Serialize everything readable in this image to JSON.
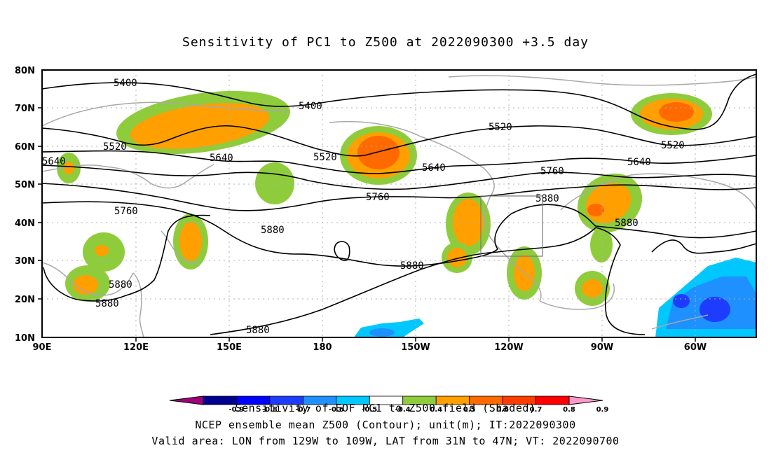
{
  "title": "Sensitivity of PC1 to Z500 at 2022090300 +3.5 day",
  "axes": {
    "lon_labels": [
      "90E",
      "120E",
      "150E",
      "180",
      "150W",
      "120W",
      "90W",
      "60W"
    ],
    "lat_labels": [
      "80N",
      "70N",
      "60N",
      "50N",
      "40N",
      "30N",
      "20N",
      "10N"
    ]
  },
  "contour_labels": [
    {
      "text": "5400"
    },
    {
      "text": "5400"
    },
    {
      "text": "5520"
    },
    {
      "text": "5520"
    },
    {
      "text": "5520"
    },
    {
      "text": "5520"
    },
    {
      "text": "5640"
    },
    {
      "text": "5640"
    },
    {
      "text": "5640"
    },
    {
      "text": "5640"
    },
    {
      "text": "5760"
    },
    {
      "text": "5760"
    },
    {
      "text": "5760"
    },
    {
      "text": "5880"
    },
    {
      "text": "5880"
    },
    {
      "text": "5880"
    },
    {
      "text": "5880"
    },
    {
      "text": "5880"
    },
    {
      "text": "5880"
    },
    {
      "text": "5880"
    }
  ],
  "colorbar": {
    "ticks": [
      "-0.9",
      "-0.8",
      "-0.7",
      "-0.6",
      "-0.5",
      "-0.4",
      "0.4",
      "0.5",
      "0.6",
      "0.7",
      "0.8",
      "0.9"
    ],
    "colors": [
      "#a0007a",
      "#00008f",
      "#0000ff",
      "#1e3cff",
      "#1e90ff",
      "#00c8ff",
      "#ffffff",
      "#8fcc3c",
      "#ff9f00",
      "#ff6a00",
      "#ff3c00",
      "#ff0000",
      "#ff99cc"
    ]
  },
  "captions": {
    "line1": "Sensitivity of EOF PC1 to Z500 field (Shaded)",
    "line2": "NCEP ensemble mean Z500 (Contour); unit(m); IT:2022090300",
    "line3": "Valid area: LON from 129W to 109W, LAT from 31N to 47N; VT: 2022090700"
  },
  "colors": {
    "green": "#8fcc3c",
    "orange": "#ff9f00",
    "red_orange": "#ff6a00",
    "blue": "#1e90ff",
    "cyan": "#00c8ff",
    "dark_blue": "#1e3cff"
  }
}
